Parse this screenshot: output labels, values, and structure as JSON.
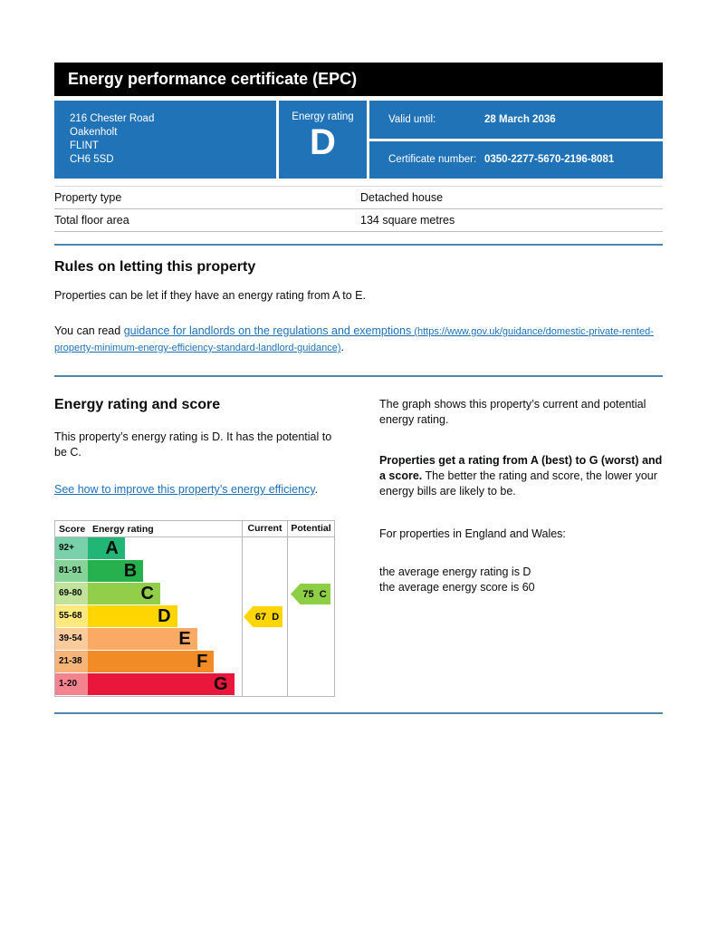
{
  "header": {
    "title": "Energy performance certificate (EPC)"
  },
  "summary": {
    "address_lines": [
      "216 Chester Road",
      "Oakenholt",
      "FLINT",
      "CH6 5SD"
    ],
    "energy_rating_label": "Energy rating",
    "energy_rating": "D",
    "valid_until_label": "Valid until:",
    "valid_until": "28 March 2036",
    "certificate_number_label": "Certificate number:",
    "certificate_number": "0350-2277-5670-2196-8081"
  },
  "property": {
    "rows": [
      {
        "label": "Property type",
        "value": "Detached house"
      },
      {
        "label": "Total floor area",
        "value": "134 square metres"
      }
    ]
  },
  "rules": {
    "heading": "Rules on letting this property",
    "para1": "Properties can be let if they have an energy rating from A to E.",
    "para2_prefix": "You can read ",
    "link_text": "guidance for landlords on the regulations and exemptions",
    "link_url_text": " (https://www.gov.uk/guidance/domestic-private-rented-property-minimum-energy-efficiency-standard-landlord-guidance)",
    "para2_suffix": "."
  },
  "rating_section": {
    "heading": "Energy rating and score",
    "para1": "This property’s energy rating is D. It has the potential to be C.",
    "improve_link_text": "See how to improve this property’s energy efficiency",
    "improve_link_suffix": ".",
    "right_para1": "The graph shows this property’s current and potential energy rating.",
    "right_para2_bold": "Properties get a rating from A (best) to G (worst) and a score.",
    "right_para2_rest": " The better the rating and score, the lower your energy bills are likely to be.",
    "right_para3": "For properties in England and Wales:",
    "right_para4_line1": "the average energy rating is D",
    "right_para4_line2": "the average energy score is 60"
  },
  "chart_data": {
    "type": "epc-rating-bands",
    "headers": {
      "score": "Score",
      "rating": "Energy rating",
      "current": "Current",
      "potential": "Potential"
    },
    "bands": [
      {
        "score": "92+",
        "letter": "A",
        "color": "#22b676",
        "tint": "#78d1aa",
        "width_pct": 24
      },
      {
        "score": "81-91",
        "letter": "B",
        "color": "#26b04e",
        "tint": "#85d398",
        "width_pct": 36
      },
      {
        "score": "69-80",
        "letter": "C",
        "color": "#93ce4b",
        "tint": "#c1e29a",
        "width_pct": 47
      },
      {
        "score": "55-68",
        "letter": "D",
        "color": "#ffd500",
        "tint": "#ffe97d",
        "width_pct": 58
      },
      {
        "score": "39-54",
        "letter": "E",
        "color": "#fbaa65",
        "tint": "#fccb9c",
        "width_pct": 71
      },
      {
        "score": "21-38",
        "letter": "F",
        "color": "#f08b26",
        "tint": "#f6b477",
        "width_pct": 82
      },
      {
        "score": "1-20",
        "letter": "G",
        "color": "#e9173c",
        "tint": "#f3838f",
        "width_pct": 95
      }
    ],
    "current": {
      "score": 67,
      "letter": "D",
      "band_index": 3,
      "color": "#ffd500",
      "label": "67  D"
    },
    "potential": {
      "score": 75,
      "letter": "C",
      "band_index": 2,
      "color": "#8dce46",
      "label": "75  C"
    }
  },
  "colors": {
    "govuk_blue": "#2173b8",
    "link_blue": "#1d70b8",
    "divider_blue": "#4d86b0",
    "header_black": "#000000"
  }
}
